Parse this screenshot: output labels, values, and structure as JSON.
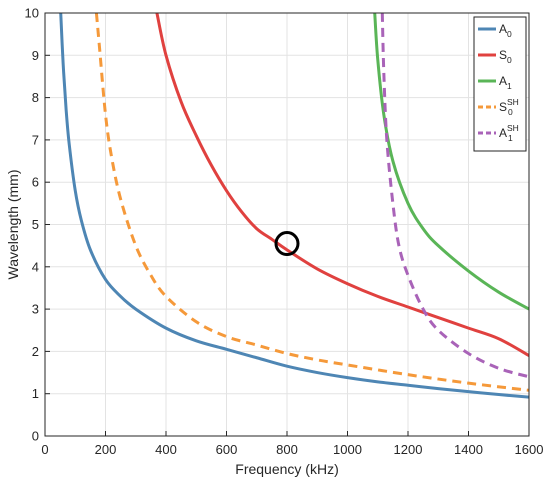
{
  "chart_data": {
    "type": "line",
    "xlabel": "Frequency (kHz)",
    "ylabel": "Wavelength (mm)",
    "xlim": [
      0,
      1600
    ],
    "ylim": [
      0,
      10
    ],
    "xticks": [
      0,
      200,
      400,
      600,
      800,
      1000,
      1200,
      1400,
      1600
    ],
    "yticks": [
      0,
      1,
      2,
      3,
      4,
      5,
      6,
      7,
      8,
      9,
      10
    ],
    "grid": true,
    "legend_position": "top-right",
    "series": [
      {
        "name": "A0",
        "label_main": "A",
        "label_sub": "0",
        "label_sup": "",
        "color": "#4e86b4",
        "dash": "solid",
        "x": [
          52,
          60,
          70,
          80,
          100,
          120,
          150,
          200,
          250,
          300,
          400,
          500,
          600,
          700,
          800,
          900,
          1000,
          1100,
          1200,
          1300,
          1400,
          1500,
          1600
        ],
        "y": [
          10.0,
          8.8,
          7.7,
          6.9,
          5.8,
          5.1,
          4.4,
          3.7,
          3.3,
          3.0,
          2.55,
          2.25,
          2.05,
          1.85,
          1.65,
          1.5,
          1.38,
          1.28,
          1.2,
          1.12,
          1.05,
          0.98,
          0.92
        ]
      },
      {
        "name": "S0",
        "label_main": "S",
        "label_sub": "0",
        "label_sup": "",
        "color": "#e0413f",
        "dash": "solid",
        "x": [
          370,
          400,
          450,
          500,
          550,
          600,
          650,
          700,
          750,
          800,
          900,
          1000,
          1100,
          1200,
          1300,
          1400,
          1500,
          1600
        ],
        "y": [
          10.0,
          9.0,
          7.9,
          7.1,
          6.4,
          5.8,
          5.3,
          4.9,
          4.65,
          4.4,
          3.95,
          3.6,
          3.3,
          3.05,
          2.8,
          2.55,
          2.3,
          1.9
        ]
      },
      {
        "name": "A1",
        "label_main": "A",
        "label_sub": "1",
        "label_sup": "",
        "color": "#5ab557",
        "dash": "solid",
        "x": [
          1090,
          1100,
          1120,
          1150,
          1200,
          1250,
          1300,
          1400,
          1500,
          1600
        ],
        "y": [
          10.0,
          8.9,
          7.6,
          6.5,
          5.5,
          4.9,
          4.5,
          3.9,
          3.4,
          3.0
        ]
      },
      {
        "name": "S0SH",
        "label_main": "S",
        "label_sub": "0",
        "label_sup": "SH",
        "color": "#f5993a",
        "dash": "dashed",
        "x": [
          170,
          180,
          200,
          220,
          250,
          300,
          350,
          400,
          500,
          600,
          700,
          800,
          900,
          1000,
          1200,
          1400,
          1600
        ],
        "y": [
          10.0,
          9.2,
          7.6,
          6.6,
          5.6,
          4.5,
          3.8,
          3.3,
          2.7,
          2.35,
          2.15,
          1.95,
          1.8,
          1.68,
          1.45,
          1.25,
          1.08
        ]
      },
      {
        "name": "A1SH",
        "label_main": "A",
        "label_sub": "1",
        "label_sup": "SH",
        "color": "#a963b8",
        "dash": "dashed",
        "x": [
          1115,
          1120,
          1130,
          1150,
          1170,
          1200,
          1250,
          1300,
          1400,
          1500,
          1600
        ],
        "y": [
          10.0,
          8.6,
          7.0,
          5.5,
          4.5,
          3.8,
          3.0,
          2.5,
          1.95,
          1.6,
          1.4
        ]
      }
    ],
    "annotations": [
      {
        "type": "circle",
        "x": 800,
        "y": 4.55,
        "color": "#000000"
      }
    ]
  }
}
